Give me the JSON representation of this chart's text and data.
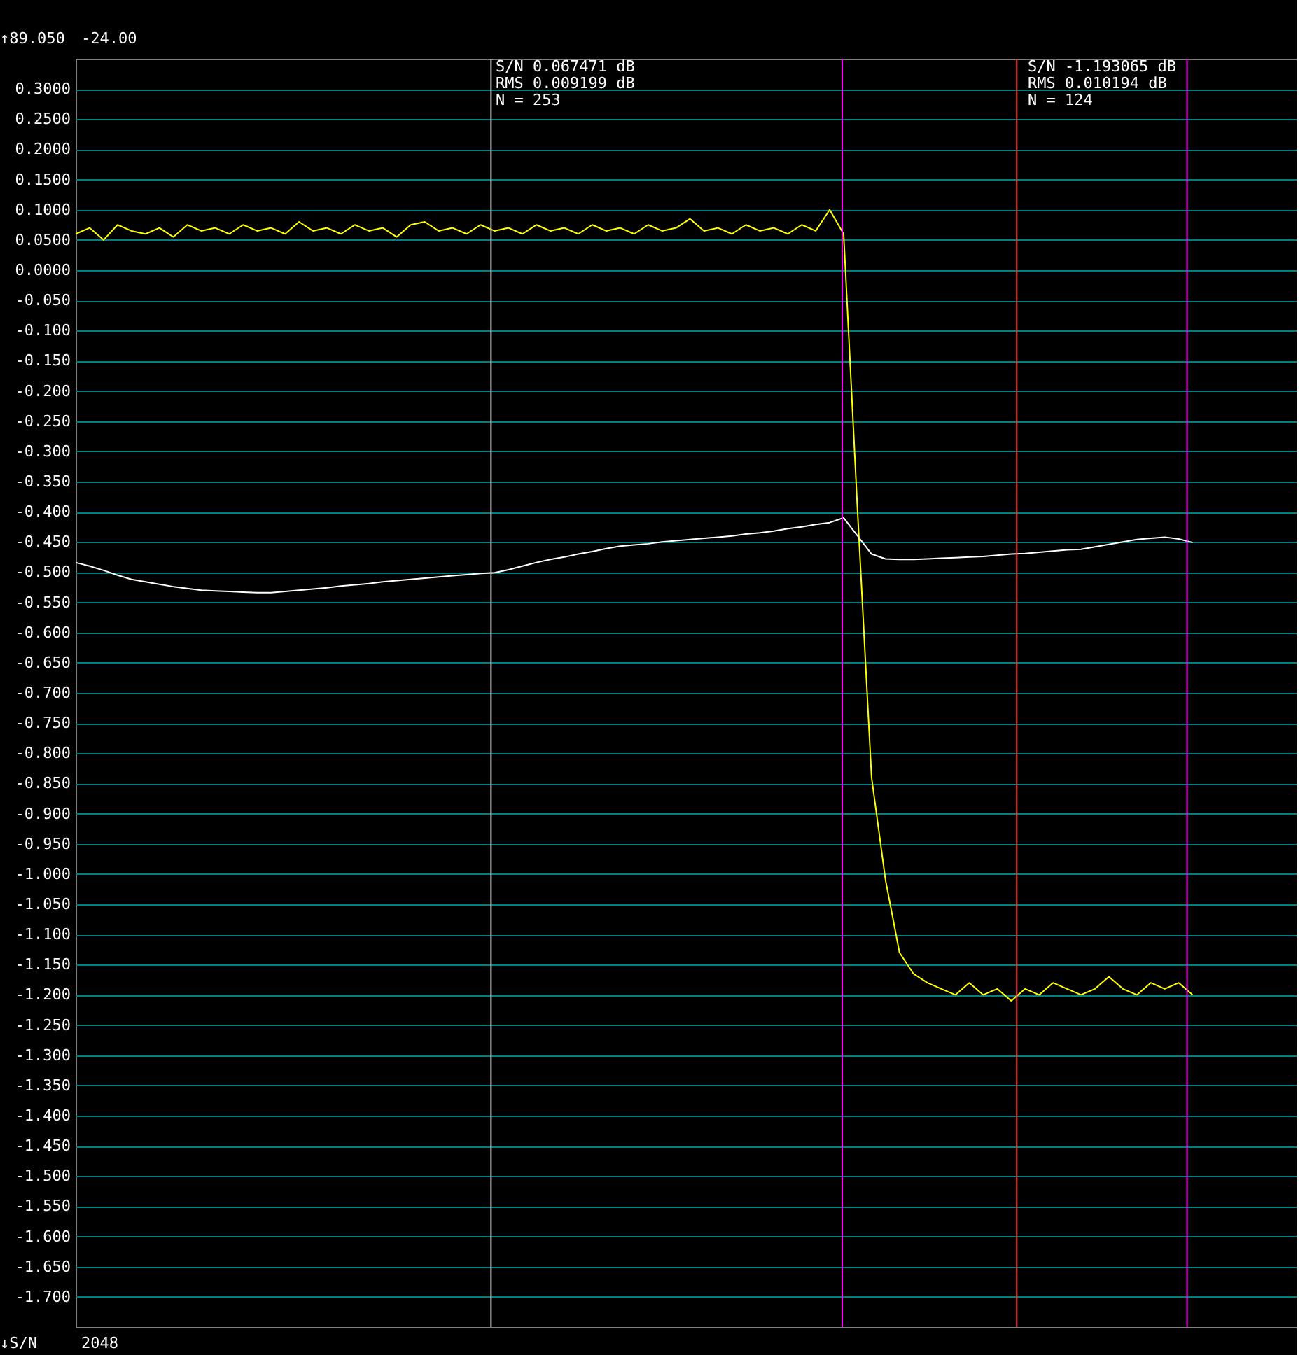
{
  "chart_data": {
    "type": "line",
    "tick_labels": "y",
    "grid": "y",
    "marker": "none",
    "line_style": "solid",
    "categories": [
      null,
      null,
      null,
      null,
      null,
      null,
      null,
      null,
      null,
      null,
      null,
      null,
      null,
      null,
      null,
      null,
      null,
      null,
      null,
      null,
      null,
      null,
      null,
      null,
      null,
      null,
      null,
      null,
      null,
      null,
      null,
      null,
      null,
      null,
      null,
      null,
      null,
      null,
      null,
      null,
      null,
      null,
      null,
      null,
      null,
      null,
      null,
      null,
      null,
      null,
      null,
      null,
      null,
      null,
      null,
      null,
      null,
      null,
      null,
      null,
      null,
      null,
      null,
      null,
      null,
      null,
      null,
      null,
      null,
      null,
      null,
      null,
      null,
      null,
      null,
      null,
      null,
      null,
      null,
      null,
      null
    ],
    "ylim": [
      -1.75,
      0.35
    ],
    "yticks": [
      {
        "value": 0.3,
        "label": "0.3000"
      },
      {
        "value": 0.25,
        "label": "0.2500"
      },
      {
        "value": 0.2,
        "label": "0.2000"
      },
      {
        "value": 0.15,
        "label": "0.1500"
      },
      {
        "value": 0.1,
        "label": "0.1000"
      },
      {
        "value": 0.05,
        "label": "0.0500"
      },
      {
        "value": 0,
        "label": "0.0000"
      },
      {
        "value": -0.05,
        "label": "-0.050"
      },
      {
        "value": -0.1,
        "label": "-0.100"
      },
      {
        "value": -0.15,
        "label": "-0.150"
      },
      {
        "value": -0.2,
        "label": "-0.200"
      },
      {
        "value": -0.25,
        "label": "-0.250"
      },
      {
        "value": -0.3,
        "label": "-0.300"
      },
      {
        "value": -0.35,
        "label": "-0.350"
      },
      {
        "value": -0.4,
        "label": "-0.400"
      },
      {
        "value": -0.45,
        "label": "-0.450"
      },
      {
        "value": -0.5,
        "label": "-0.500"
      },
      {
        "value": -0.55,
        "label": "-0.550"
      },
      {
        "value": -0.6,
        "label": "-0.600"
      },
      {
        "value": -0.65,
        "label": "-0.650"
      },
      {
        "value": -0.7,
        "label": "-0.700"
      },
      {
        "value": -0.75,
        "label": "-0.750"
      },
      {
        "value": -0.8,
        "label": "-0.800"
      },
      {
        "value": -0.85,
        "label": "-0.850"
      },
      {
        "value": -0.9,
        "label": "-0.900"
      },
      {
        "value": -0.95,
        "label": "-0.950"
      },
      {
        "value": -1.0,
        "label": "-1.000"
      },
      {
        "value": -1.05,
        "label": "-1.050"
      },
      {
        "value": -1.1,
        "label": "-1.100"
      },
      {
        "value": -1.15,
        "label": "-1.150"
      },
      {
        "value": -1.2,
        "label": "-1.200"
      },
      {
        "value": -1.25,
        "label": "-1.250"
      },
      {
        "value": -1.3,
        "label": "-1.300"
      },
      {
        "value": -1.35,
        "label": "-1.350"
      },
      {
        "value": -1.4,
        "label": "-1.400"
      },
      {
        "value": -1.45,
        "label": "-1.450"
      },
      {
        "value": -1.5,
        "label": "-1.500"
      },
      {
        "value": -1.55,
        "label": "-1.550"
      },
      {
        "value": -1.6,
        "label": "-1.600"
      },
      {
        "value": -1.65,
        "label": "-1.650"
      },
      {
        "value": -1.7,
        "label": "-1.700"
      }
    ],
    "series": [
      {
        "color": "#ffff00",
        "values": [
          0.06,
          0.07,
          0.05,
          0.075,
          0.065,
          0.06,
          0.07,
          0.055,
          0.075,
          0.065,
          0.07,
          0.06,
          0.075,
          0.065,
          0.07,
          0.06,
          0.08,
          0.065,
          0.07,
          0.06,
          0.075,
          0.065,
          0.07,
          0.055,
          0.075,
          0.08,
          0.065,
          0.07,
          0.06,
          0.075,
          0.065,
          0.07,
          0.06,
          0.075,
          0.065,
          0.07,
          0.06,
          0.075,
          0.065,
          0.07,
          0.06,
          0.075,
          0.065,
          0.07,
          0.085,
          0.065,
          0.07,
          0.06,
          0.075,
          0.065,
          0.07,
          0.06,
          0.075,
          0.065,
          0.1,
          0.06,
          -0.4,
          -0.84,
          -1.01,
          -1.13,
          -1.165,
          -1.18,
          -1.19,
          -1.2,
          -1.18,
          -1.2,
          -1.19,
          -1.21,
          -1.19,
          -1.2,
          -1.18,
          -1.19,
          -1.2,
          -1.19,
          -1.17,
          -1.19,
          -1.2,
          -1.18,
          -1.19,
          -1.18,
          -1.2
        ]
      },
      {
        "color": "#ffffff",
        "values": [
          -0.484,
          -0.49,
          -0.497,
          -0.505,
          -0.512,
          -0.516,
          -0.52,
          -0.524,
          -0.527,
          -0.53,
          -0.531,
          -0.532,
          -0.533,
          -0.534,
          -0.534,
          -0.532,
          -0.53,
          -0.528,
          -0.526,
          -0.523,
          -0.521,
          -0.519,
          -0.516,
          -0.514,
          -0.512,
          -0.51,
          -0.508,
          -0.506,
          -0.504,
          -0.502,
          -0.501,
          -0.496,
          -0.49,
          -0.484,
          -0.479,
          -0.475,
          -0.47,
          -0.466,
          -0.461,
          -0.457,
          -0.455,
          -0.453,
          -0.45,
          -0.448,
          -0.446,
          -0.444,
          -0.442,
          -0.44,
          -0.437,
          -0.435,
          -0.432,
          -0.428,
          -0.425,
          -0.421,
          -0.418,
          -0.41,
          -0.44,
          -0.47,
          -0.478,
          -0.479,
          -0.479,
          -0.478,
          -0.477,
          -0.476,
          -0.475,
          -0.474,
          -0.472,
          -0.47,
          -0.469,
          -0.467,
          -0.465,
          -0.463,
          -0.462,
          -0.458,
          -0.454,
          -0.45,
          -0.446,
          -0.444,
          -0.442,
          -0.445,
          -0.451
        ]
      }
    ],
    "annotations": [
      "S/N 0.067471 dB",
      "RMS 0.009199 dB",
      "N = 253",
      "S/N -1.193065 dB",
      "RMS 0.010194 dB",
      "N = 124",
      "↑89.050",
      "-24.00",
      "↓S/N",
      "2048"
    ]
  }
}
